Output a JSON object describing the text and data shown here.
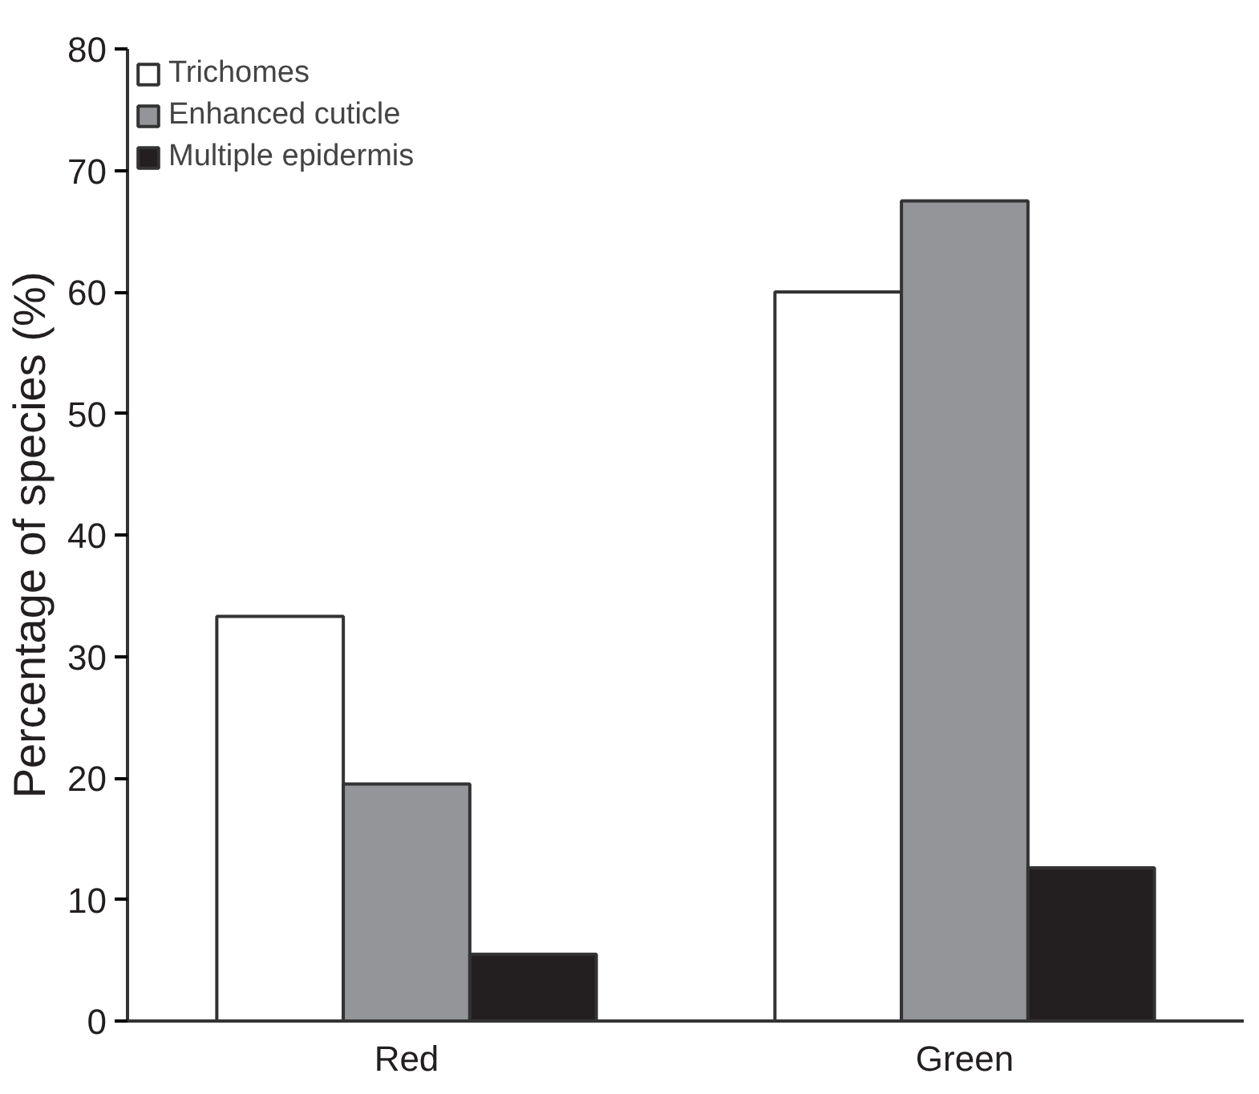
{
  "chart_data": {
    "type": "bar",
    "ylabel": "Percentage of species (%)",
    "categories": [
      "Red",
      "Green"
    ],
    "series": [
      {
        "name": "Trichomes",
        "color": "#ffffff",
        "values": [
          33.3,
          60
        ]
      },
      {
        "name": "Enhanced cuticle",
        "color": "#939598",
        "values": [
          19.5,
          67.5
        ]
      },
      {
        "name": "Multiple epidermis",
        "color": "#231f20",
        "values": [
          5.5,
          12.6
        ]
      }
    ],
    "ylim": [
      0,
      80
    ],
    "yticks": [
      0,
      10,
      20,
      30,
      40,
      50,
      60,
      70,
      80
    ],
    "grid": false,
    "legend": "top left"
  }
}
